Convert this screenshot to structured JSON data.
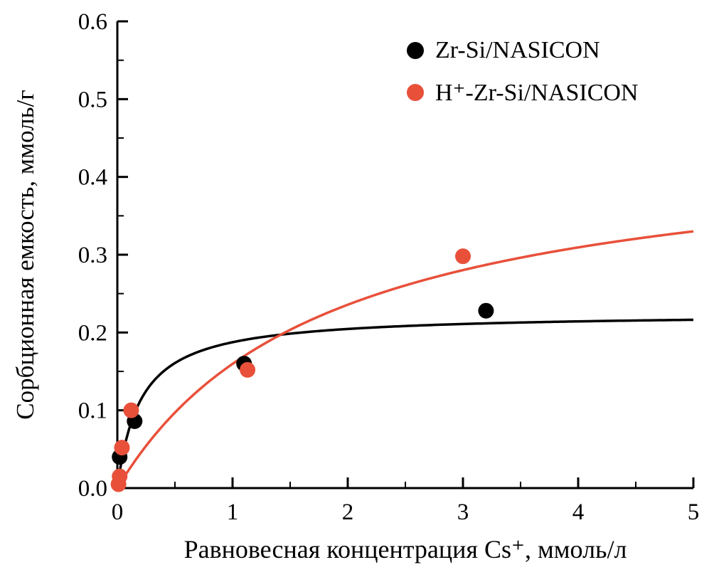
{
  "figure": {
    "background": "#ffffff",
    "text_color": "#000000"
  },
  "chart_data": {
    "type": "scatter",
    "title": "",
    "xlabel": "Равновесная концентрация Cs⁺, ммоль/л",
    "ylabel": "Сорбционная емкость, ммоль/г",
    "xlim": [
      0,
      5
    ],
    "ylim": [
      0,
      0.6
    ],
    "xticks": [
      0,
      1,
      2,
      3,
      4,
      5
    ],
    "xtick_labels": [
      "0",
      "1",
      "2",
      "3",
      "4",
      "5"
    ],
    "yticks": [
      0,
      0.1,
      0.2,
      0.3,
      0.4,
      0.5,
      0.6
    ],
    "ytick_labels": [
      "0.0",
      "0.1",
      "0.2",
      "0.3",
      "0.4",
      "0.5",
      "0.6"
    ],
    "minor_x_step": 0.5,
    "minor_y_step": 0.05,
    "grid": false,
    "legend_position": "top-right-inside",
    "series": [
      {
        "name": "Zr-Si/NASICON",
        "color": "#000000",
        "marker": "circle",
        "points": [
          [
            0.02,
            0.04
          ],
          [
            0.15,
            0.086
          ],
          [
            1.1,
            0.16
          ],
          [
            3.2,
            0.228
          ]
        ],
        "fit": {
          "model": "langmuir",
          "qmax": 0.225,
          "K": 5.0
        }
      },
      {
        "name": "H⁺-Zr-Si/NASICON",
        "color": "#e8503a",
        "marker": "circle",
        "points": [
          [
            0.01,
            0.005
          ],
          [
            0.02,
            0.015
          ],
          [
            0.04,
            0.052
          ],
          [
            0.12,
            0.1
          ],
          [
            1.13,
            0.152
          ],
          [
            3.0,
            0.298
          ]
        ],
        "fit": {
          "model": "langmuir",
          "qmax": 0.45,
          "K": 0.55
        }
      }
    ]
  }
}
